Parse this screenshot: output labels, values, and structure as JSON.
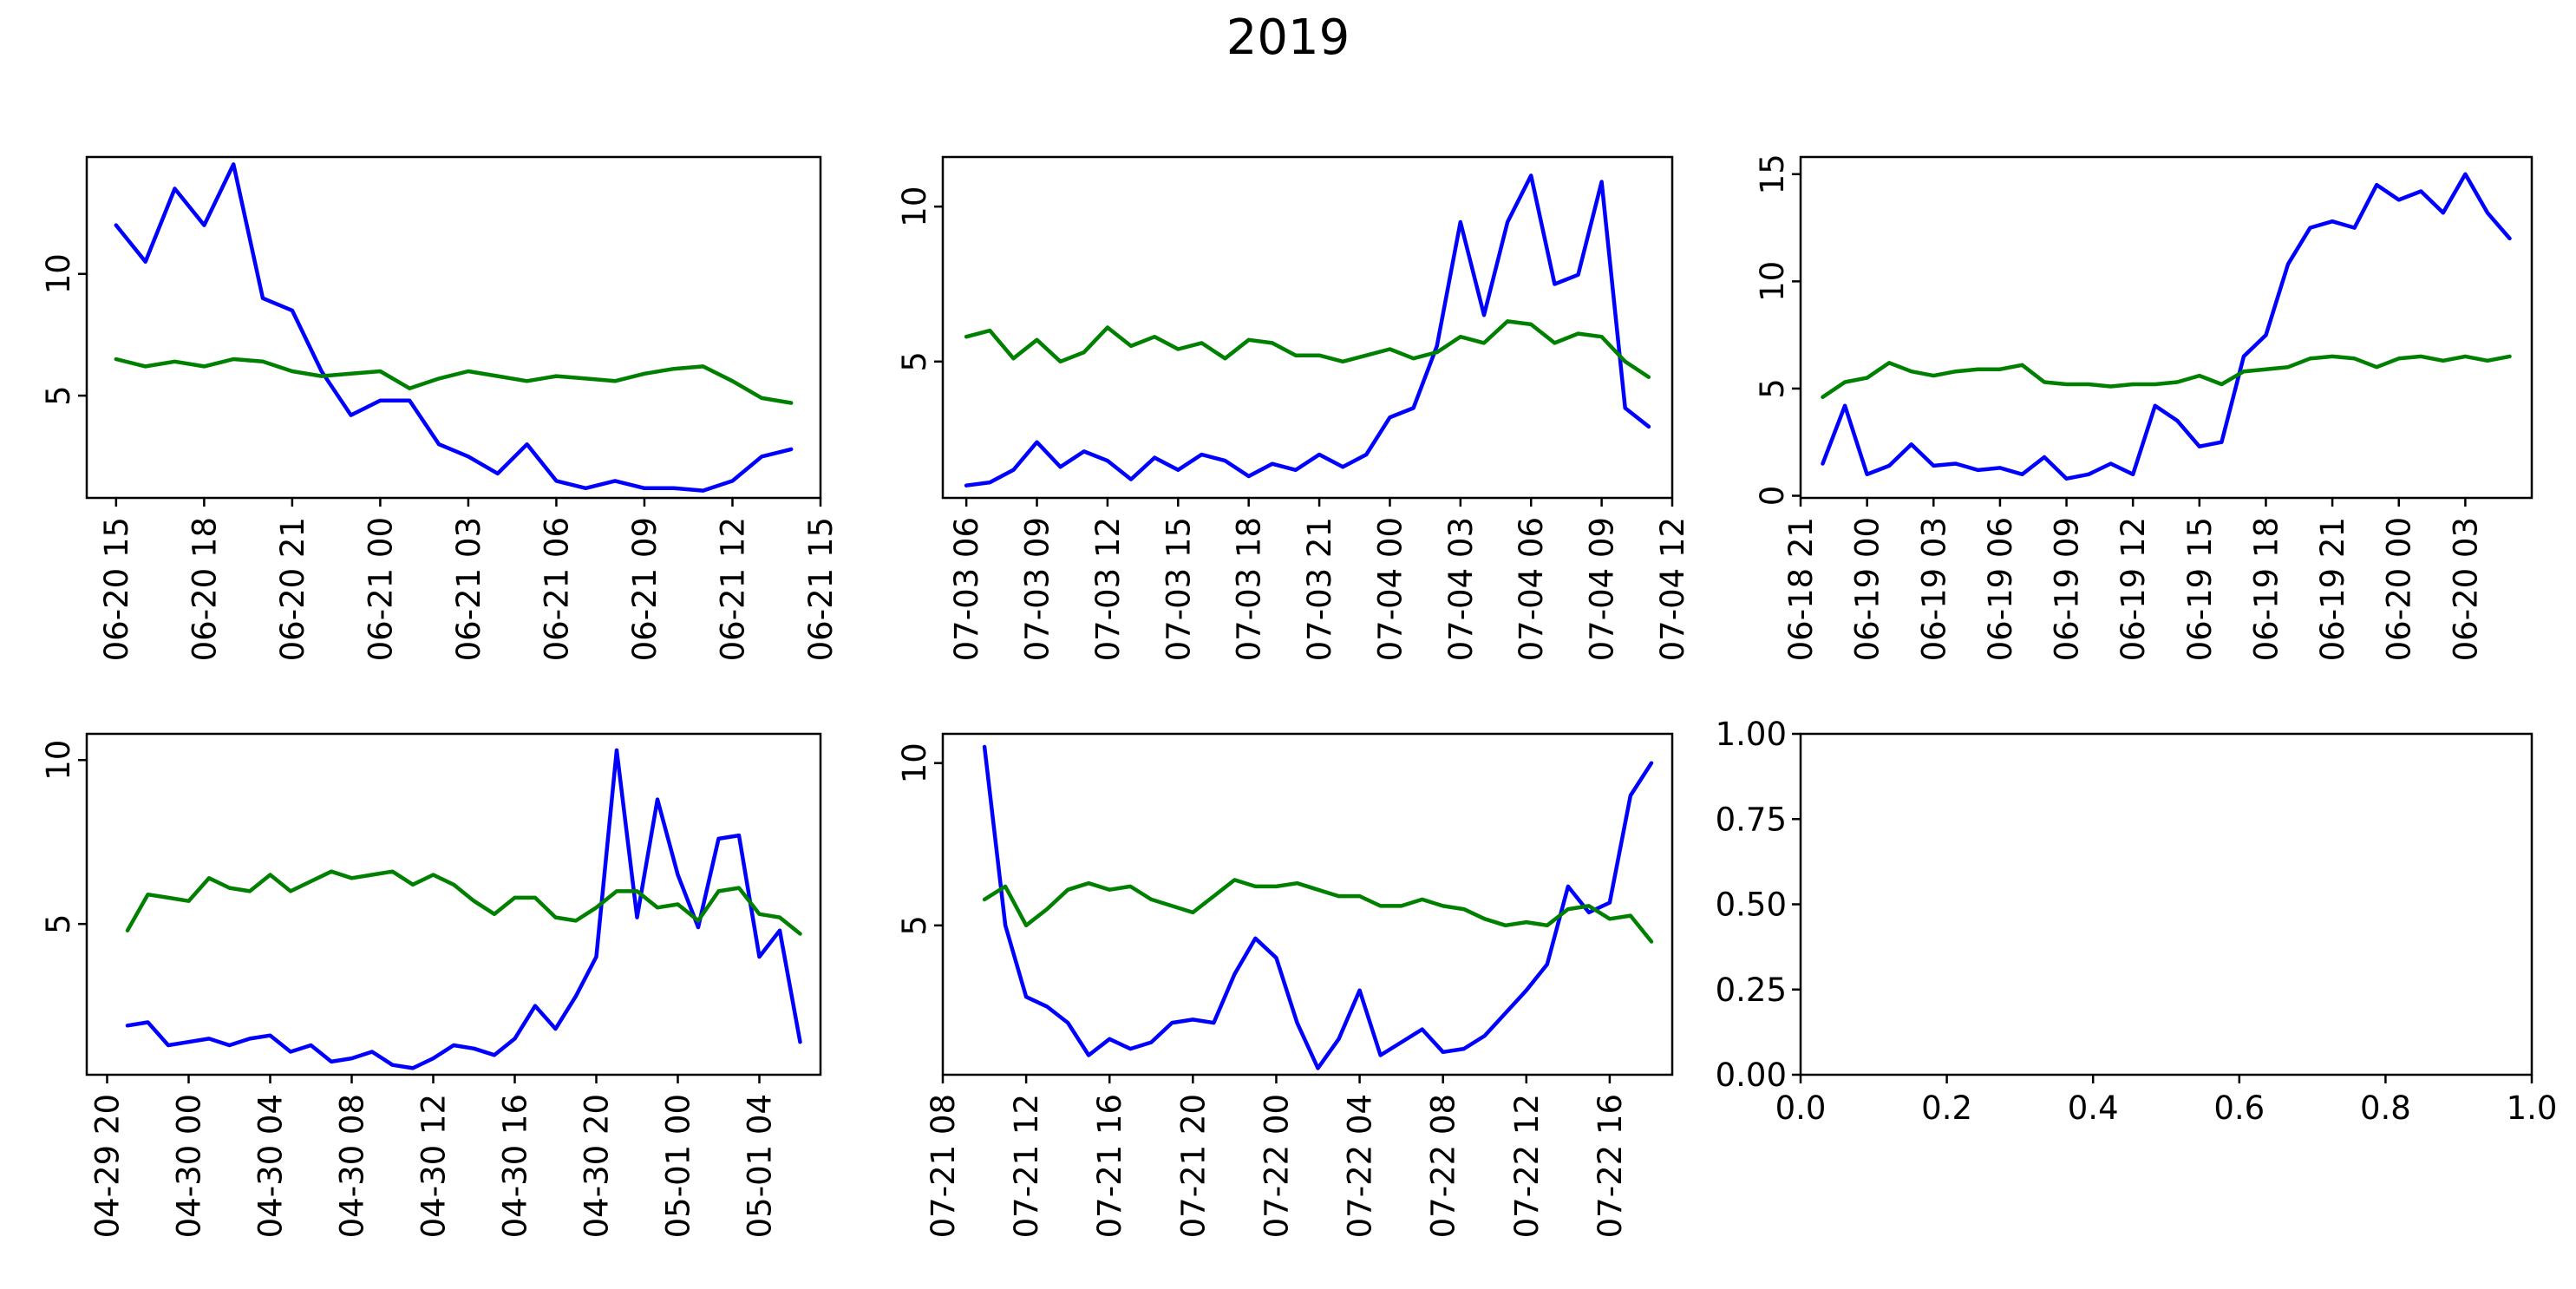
{
  "suptitle": "2019",
  "colors": {
    "series_blue": "#0000ff",
    "series_green": "#008000"
  },
  "chart_data": [
    {
      "type": "line",
      "title": "",
      "xlabel": "",
      "ylabel": "",
      "x_range": [
        "2019-06-20 14:00",
        "2019-06-21 15:00"
      ],
      "ylim": [
        0.8,
        14.8
      ],
      "yticks": [
        5,
        10
      ],
      "ytick_labels": [
        "5",
        "10"
      ],
      "xtick_labels": [
        "06-20 15",
        "06-20 18",
        "06-20 21",
        "06-21 00",
        "06-21 03",
        "06-21 06",
        "06-21 09",
        "06-21 12",
        "06-21 15"
      ],
      "x": [
        "2019-06-20 15:00",
        "2019-06-20 16:00",
        "2019-06-20 17:00",
        "2019-06-20 18:00",
        "2019-06-20 19:00",
        "2019-06-20 20:00",
        "2019-06-20 21:00",
        "2019-06-20 22:00",
        "2019-06-20 23:00",
        "2019-06-21 00:00",
        "2019-06-21 01:00",
        "2019-06-21 02:00",
        "2019-06-21 03:00",
        "2019-06-21 04:00",
        "2019-06-21 05:00",
        "2019-06-21 06:00",
        "2019-06-21 07:00",
        "2019-06-21 08:00",
        "2019-06-21 09:00",
        "2019-06-21 10:00",
        "2019-06-21 11:00",
        "2019-06-21 12:00",
        "2019-06-21 13:00",
        "2019-06-21 14:00"
      ],
      "series": [
        {
          "color": "#0000ff",
          "values": [
            12.0,
            10.5,
            13.5,
            12.0,
            14.5,
            9.0,
            8.5,
            6.0,
            4.2,
            4.8,
            4.8,
            3.0,
            2.5,
            1.8,
            3.0,
            1.5,
            1.2,
            1.5,
            1.2,
            1.2,
            1.1,
            1.5,
            2.5,
            2.8
          ]
        },
        {
          "color": "#008000",
          "values": [
            6.5,
            6.2,
            6.4,
            6.2,
            6.5,
            6.4,
            6.0,
            5.8,
            5.9,
            6.0,
            5.3,
            5.7,
            6.0,
            5.8,
            5.6,
            5.8,
            5.7,
            5.6,
            5.9,
            6.1,
            6.2,
            5.6,
            4.9,
            4.7
          ]
        }
      ]
    },
    {
      "type": "line",
      "title": "",
      "xlabel": "",
      "ylabel": "",
      "x_range": [
        "2019-07-03 05:00",
        "2019-07-04 12:00"
      ],
      "ylim": [
        0.6,
        11.6
      ],
      "yticks": [
        5,
        10
      ],
      "ytick_labels": [
        "5",
        "10"
      ],
      "xtick_labels": [
        "07-03 06",
        "07-03 09",
        "07-03 12",
        "07-03 15",
        "07-03 18",
        "07-03 21",
        "07-04 00",
        "07-04 03",
        "07-04 06",
        "07-04 09",
        "07-04 12"
      ],
      "x": [
        "2019-07-03 06:00",
        "2019-07-03 07:00",
        "2019-07-03 08:00",
        "2019-07-03 09:00",
        "2019-07-03 10:00",
        "2019-07-03 11:00",
        "2019-07-03 12:00",
        "2019-07-03 13:00",
        "2019-07-03 14:00",
        "2019-07-03 15:00",
        "2019-07-03 16:00",
        "2019-07-03 17:00",
        "2019-07-03 18:00",
        "2019-07-03 19:00",
        "2019-07-03 20:00",
        "2019-07-03 21:00",
        "2019-07-03 22:00",
        "2019-07-03 23:00",
        "2019-07-04 00:00",
        "2019-07-04 01:00",
        "2019-07-04 02:00",
        "2019-07-04 03:00",
        "2019-07-04 04:00",
        "2019-07-04 05:00",
        "2019-07-04 06:00",
        "2019-07-04 07:00",
        "2019-07-04 08:00",
        "2019-07-04 09:00",
        "2019-07-04 10:00",
        "2019-07-04 11:00"
      ],
      "series": [
        {
          "color": "#0000ff",
          "values": [
            1.0,
            1.1,
            1.5,
            2.4,
            1.6,
            2.1,
            1.8,
            1.2,
            1.9,
            1.5,
            2.0,
            1.8,
            1.3,
            1.7,
            1.5,
            2.0,
            1.6,
            2.0,
            3.2,
            3.5,
            5.5,
            9.5,
            6.5,
            9.5,
            11.0,
            7.5,
            7.8,
            10.8,
            3.5,
            2.9
          ]
        },
        {
          "color": "#008000",
          "values": [
            5.8,
            6.0,
            5.1,
            5.7,
            5.0,
            5.3,
            6.1,
            5.5,
            5.8,
            5.4,
            5.6,
            5.1,
            5.7,
            5.6,
            5.2,
            5.2,
            5.0,
            5.2,
            5.4,
            5.1,
            5.3,
            5.8,
            5.6,
            6.3,
            6.2,
            5.6,
            5.9,
            5.8,
            5.0,
            4.5
          ]
        }
      ]
    },
    {
      "type": "line",
      "title": "",
      "xlabel": "",
      "ylabel": "",
      "x_range": [
        "2019-06-18 21:00",
        "2019-06-20 06:00"
      ],
      "ylim": [
        -0.1,
        15.8
      ],
      "yticks": [
        0,
        5,
        10,
        15
      ],
      "ytick_labels": [
        "0",
        "5",
        "10",
        "15"
      ],
      "xtick_labels": [
        "06-18 21",
        "06-19 00",
        "06-19 03",
        "06-19 06",
        "06-19 09",
        "06-19 12",
        "06-19 15",
        "06-19 18",
        "06-19 21",
        "06-20 00",
        "06-20 03"
      ],
      "x": [
        "2019-06-18 22:00",
        "2019-06-18 23:00",
        "2019-06-19 00:00",
        "2019-06-19 01:00",
        "2019-06-19 02:00",
        "2019-06-19 03:00",
        "2019-06-19 04:00",
        "2019-06-19 05:00",
        "2019-06-19 06:00",
        "2019-06-19 07:00",
        "2019-06-19 08:00",
        "2019-06-19 09:00",
        "2019-06-19 10:00",
        "2019-06-19 11:00",
        "2019-06-19 12:00",
        "2019-06-19 13:00",
        "2019-06-19 14:00",
        "2019-06-19 15:00",
        "2019-06-19 16:00",
        "2019-06-19 17:00",
        "2019-06-19 18:00",
        "2019-06-19 19:00",
        "2019-06-19 20:00",
        "2019-06-19 21:00",
        "2019-06-19 22:00",
        "2019-06-19 23:00",
        "2019-06-20 00:00",
        "2019-06-20 01:00",
        "2019-06-20 02:00",
        "2019-06-20 03:00",
        "2019-06-20 04:00",
        "2019-06-20 05:00"
      ],
      "series": [
        {
          "color": "#0000ff",
          "values": [
            1.5,
            4.2,
            1.0,
            1.4,
            2.4,
            1.4,
            1.5,
            1.2,
            1.3,
            1.0,
            1.8,
            0.8,
            1.0,
            1.5,
            1.0,
            4.2,
            3.5,
            2.3,
            2.5,
            6.5,
            7.5,
            10.8,
            12.5,
            12.8,
            12.5,
            14.5,
            13.8,
            14.2,
            13.2,
            15.0,
            13.2,
            12.0
          ]
        },
        {
          "color": "#008000",
          "values": [
            4.6,
            5.3,
            5.5,
            6.2,
            5.8,
            5.6,
            5.8,
            5.9,
            5.9,
            6.1,
            5.3,
            5.2,
            5.2,
            5.1,
            5.2,
            5.2,
            5.3,
            5.6,
            5.2,
            5.8,
            5.9,
            6.0,
            6.4,
            6.5,
            6.4,
            6.0,
            6.4,
            6.5,
            6.3,
            6.5,
            6.3,
            6.5
          ]
        }
      ]
    },
    {
      "type": "line",
      "title": "",
      "xlabel": "",
      "ylabel": "",
      "x_range": [
        "2019-04-29 19:00",
        "2019-05-01 07:00"
      ],
      "ylim": [
        0.4,
        10.8
      ],
      "yticks": [
        5,
        10
      ],
      "ytick_labels": [
        "5",
        "10"
      ],
      "xtick_labels": [
        "04-29 20",
        "04-30 00",
        "04-30 04",
        "04-30 08",
        "04-30 12",
        "04-30 16",
        "04-30 20",
        "05-01 00",
        "05-01 04"
      ],
      "x": [
        "2019-04-29 21:00",
        "2019-04-29 22:00",
        "2019-04-29 23:00",
        "2019-04-30 00:00",
        "2019-04-30 01:00",
        "2019-04-30 02:00",
        "2019-04-30 03:00",
        "2019-04-30 04:00",
        "2019-04-30 05:00",
        "2019-04-30 06:00",
        "2019-04-30 07:00",
        "2019-04-30 08:00",
        "2019-04-30 09:00",
        "2019-04-30 10:00",
        "2019-04-30 11:00",
        "2019-04-30 12:00",
        "2019-04-30 13:00",
        "2019-04-30 14:00",
        "2019-04-30 15:00",
        "2019-04-30 16:00",
        "2019-04-30 17:00",
        "2019-04-30 18:00",
        "2019-04-30 19:00",
        "2019-04-30 20:00",
        "2019-04-30 21:00",
        "2019-04-30 22:00",
        "2019-04-30 23:00",
        "2019-05-01 00:00",
        "2019-05-01 01:00",
        "2019-05-01 02:00",
        "2019-05-01 03:00",
        "2019-05-01 04:00",
        "2019-05-01 05:00",
        "2019-05-01 06:00"
      ],
      "series": [
        {
          "color": "#0000ff",
          "values": [
            1.9,
            2.0,
            1.3,
            1.4,
            1.5,
            1.3,
            1.5,
            1.6,
            1.1,
            1.3,
            0.8,
            0.9,
            1.1,
            0.7,
            0.6,
            0.9,
            1.3,
            1.2,
            1.0,
            1.5,
            2.5,
            1.8,
            2.8,
            4.0,
            10.3,
            5.2,
            8.8,
            6.5,
            4.9,
            7.6,
            7.7,
            4.0,
            4.8,
            1.4
          ]
        },
        {
          "color": "#008000",
          "values": [
            4.8,
            5.9,
            5.8,
            5.7,
            6.4,
            6.1,
            6.0,
            6.5,
            6.0,
            6.3,
            6.6,
            6.4,
            6.5,
            6.6,
            6.2,
            6.5,
            6.2,
            5.7,
            5.3,
            5.8,
            5.8,
            5.2,
            5.1,
            5.5,
            6.0,
            6.0,
            5.5,
            5.6,
            5.1,
            6.0,
            6.1,
            5.3,
            5.2,
            4.7
          ]
        }
      ]
    },
    {
      "type": "line",
      "title": "",
      "xlabel": "",
      "ylabel": "",
      "x_range": [
        "2019-07-21 08:00",
        "2019-07-22 19:00"
      ],
      "ylim": [
        0.4,
        10.9
      ],
      "yticks": [
        5,
        10
      ],
      "ytick_labels": [
        "5",
        "10"
      ],
      "xtick_labels": [
        "07-21 08",
        "07-21 12",
        "07-21 16",
        "07-21 20",
        "07-22 00",
        "07-22 04",
        "07-22 08",
        "07-22 12",
        "07-22 16"
      ],
      "x": [
        "2019-07-21 10:00",
        "2019-07-21 11:00",
        "2019-07-21 12:00",
        "2019-07-21 13:00",
        "2019-07-21 14:00",
        "2019-07-21 15:00",
        "2019-07-21 16:00",
        "2019-07-21 17:00",
        "2019-07-21 18:00",
        "2019-07-21 19:00",
        "2019-07-21 20:00",
        "2019-07-21 21:00",
        "2019-07-21 22:00",
        "2019-07-21 23:00",
        "2019-07-22 00:00",
        "2019-07-22 01:00",
        "2019-07-22 02:00",
        "2019-07-22 03:00",
        "2019-07-22 04:00",
        "2019-07-22 05:00",
        "2019-07-22 06:00",
        "2019-07-22 07:00",
        "2019-07-22 08:00",
        "2019-07-22 09:00",
        "2019-07-22 10:00",
        "2019-07-22 11:00",
        "2019-07-22 12:00",
        "2019-07-22 13:00",
        "2019-07-22 14:00",
        "2019-07-22 15:00",
        "2019-07-22 16:00",
        "2019-07-22 17:00",
        "2019-07-22 18:00"
      ],
      "series": [
        {
          "color": "#0000ff",
          "values": [
            10.5,
            5.0,
            2.8,
            2.5,
            2.0,
            1.0,
            1.5,
            1.2,
            1.4,
            2.0,
            2.1,
            2.0,
            3.5,
            4.6,
            4.0,
            2.0,
            0.6,
            1.5,
            3.0,
            1.0,
            1.4,
            1.8,
            1.1,
            1.2,
            1.6,
            2.3,
            3.0,
            3.8,
            6.2,
            5.4,
            5.7,
            9.0,
            10.0
          ]
        },
        {
          "color": "#008000",
          "values": [
            5.8,
            6.2,
            5.0,
            5.5,
            6.1,
            6.3,
            6.1,
            6.2,
            5.8,
            5.6,
            5.4,
            5.9,
            6.4,
            6.2,
            6.2,
            6.3,
            6.1,
            5.9,
            5.9,
            5.6,
            5.6,
            5.8,
            5.6,
            5.5,
            5.2,
            5.0,
            5.1,
            5.0,
            5.5,
            5.6,
            5.2,
            5.3,
            4.5
          ]
        }
      ]
    },
    {
      "type": "line",
      "title": "",
      "xlabel": "",
      "ylabel": "",
      "xlim": [
        0,
        1
      ],
      "ylim": [
        0,
        1
      ],
      "xticks": [
        0.0,
        0.2,
        0.4,
        0.6,
        0.8,
        1.0
      ],
      "yticks": [
        0.0,
        0.25,
        0.5,
        0.75,
        1.0
      ],
      "xtick_labels": [
        "0.0",
        "0.2",
        "0.4",
        "0.6",
        "0.8",
        "1.0"
      ],
      "ytick_labels": [
        "0.00",
        "0.25",
        "0.50",
        "0.75",
        "1.00"
      ],
      "series": []
    }
  ]
}
